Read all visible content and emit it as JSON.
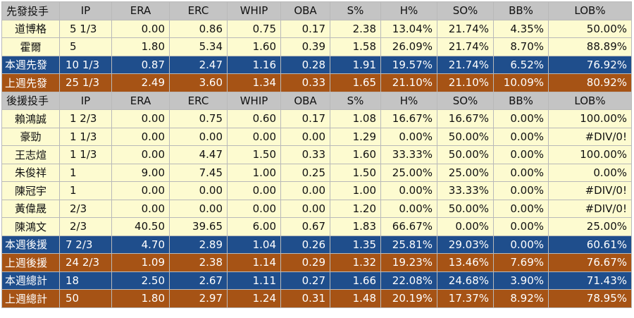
{
  "colors": {
    "header_bg": "#c4c4c4",
    "row_bg": "#fdfbd0",
    "this_week_bg": "#1f4e8c",
    "last_week_bg": "#a65315"
  },
  "starters": {
    "header": [
      "先發投手",
      "IP",
      "ERA",
      "ERC",
      "WHIP",
      "OBA",
      "S%",
      "H%",
      "SO%",
      "BB%",
      "LOB%"
    ],
    "rows": [
      {
        "type": "pitcher",
        "cells": [
          "道博格",
          "5 1/3",
          "0.00",
          "0.86",
          "0.75",
          "0.17",
          "2.38",
          "13.04%",
          "21.74%",
          "4.35%",
          "50.00%"
        ]
      },
      {
        "type": "pitcher",
        "cells": [
          "霍爾",
          "5",
          "1.80",
          "5.34",
          "1.60",
          "0.39",
          "1.58",
          "26.09%",
          "21.74%",
          "8.70%",
          "88.89%"
        ]
      },
      {
        "type": "blue",
        "cells": [
          "本週先發",
          "10 1/3",
          "0.87",
          "2.47",
          "1.16",
          "0.28",
          "1.91",
          "19.57%",
          "21.74%",
          "6.52%",
          "76.92%"
        ]
      },
      {
        "type": "orange",
        "cells": [
          "上週先發",
          "25 1/3",
          "2.49",
          "3.60",
          "1.34",
          "0.33",
          "1.65",
          "21.10%",
          "21.10%",
          "10.09%",
          "80.92%"
        ]
      }
    ]
  },
  "relievers": {
    "header": [
      "後援投手",
      "IP",
      "ERA",
      "ERC",
      "WHIP",
      "OBA",
      "S%",
      "H%",
      "SO%",
      "BB%",
      "LOB%"
    ],
    "rows": [
      {
        "type": "pitcher",
        "cells": [
          "賴鴻誠",
          "1 2/3",
          "0.00",
          "0.75",
          "0.60",
          "0.17",
          "1.08",
          "16.67%",
          "16.67%",
          "0.00%",
          "100.00%"
        ]
      },
      {
        "type": "pitcher",
        "cells": [
          "豪勁",
          "1 1/3",
          "0.00",
          "0.00",
          "0.00",
          "0.00",
          "1.29",
          "0.00%",
          "50.00%",
          "0.00%",
          "#DIV/0!"
        ]
      },
      {
        "type": "pitcher",
        "cells": [
          "王志煊",
          "1 1/3",
          "0.00",
          "4.47",
          "1.50",
          "0.33",
          "1.60",
          "33.33%",
          "50.00%",
          "0.00%",
          "100.00%"
        ]
      },
      {
        "type": "pitcher",
        "cells": [
          "朱俊祥",
          "1",
          "9.00",
          "7.45",
          "1.00",
          "0.25",
          "1.50",
          "25.00%",
          "25.00%",
          "0.00%",
          "0.00%"
        ]
      },
      {
        "type": "pitcher",
        "cells": [
          "陳冠宇",
          "1",
          "0.00",
          "0.00",
          "0.00",
          "0.00",
          "1.00",
          "0.00%",
          "33.33%",
          "0.00%",
          "#DIV/0!"
        ]
      },
      {
        "type": "pitcher",
        "cells": [
          "黃偉晟",
          "2/3",
          "0.00",
          "0.00",
          "0.00",
          "0.00",
          "1.20",
          "0.00%",
          "50.00%",
          "0.00%",
          "#DIV/0!"
        ]
      },
      {
        "type": "pitcher",
        "cells": [
          "陳鴻文",
          "2/3",
          "40.50",
          "39.65",
          "6.00",
          "0.67",
          "1.83",
          "66.67%",
          "0.00%",
          "0.00%",
          "25.00%"
        ]
      },
      {
        "type": "blue",
        "cells": [
          "本週後援",
          "7 2/3",
          "4.70",
          "2.89",
          "1.04",
          "0.26",
          "1.35",
          "25.81%",
          "29.03%",
          "0.00%",
          "60.61%"
        ]
      },
      {
        "type": "orange",
        "cells": [
          "上週後援",
          "24 2/3",
          "1.09",
          "2.38",
          "1.14",
          "0.29",
          "1.32",
          "19.23%",
          "13.46%",
          "7.69%",
          "76.67%"
        ]
      },
      {
        "type": "blue",
        "cells": [
          "本週總計",
          "18",
          "2.50",
          "2.67",
          "1.11",
          "0.27",
          "1.66",
          "22.08%",
          "24.68%",
          "3.90%",
          "71.43%"
        ]
      },
      {
        "type": "orange",
        "cells": [
          "上週總計",
          "50",
          "1.80",
          "2.97",
          "1.24",
          "0.31",
          "1.48",
          "20.19%",
          "17.37%",
          "8.92%",
          "78.95%"
        ]
      }
    ]
  }
}
